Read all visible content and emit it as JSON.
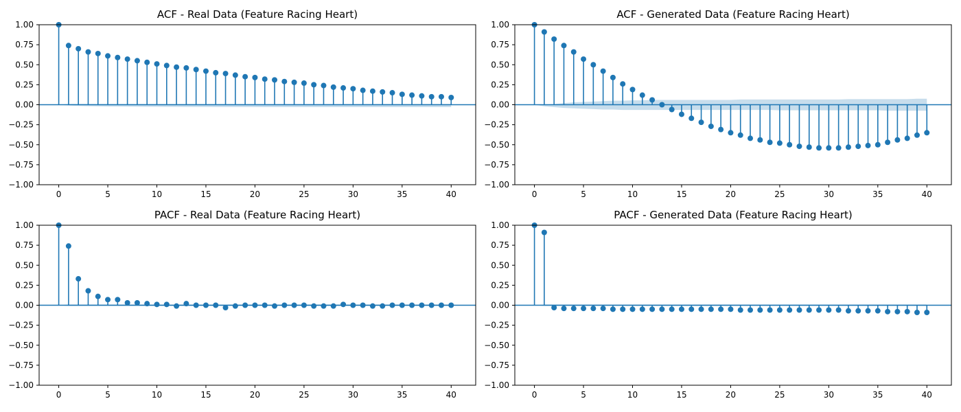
{
  "colors": {
    "series": "#1f77b4",
    "band": "#1f77b4"
  },
  "chart_data": [
    {
      "type": "stem",
      "title": "ACF - Real Data (Feature Racing Heart)",
      "xlim": [
        -2,
        42.5
      ],
      "ylim": [
        -1,
        1
      ],
      "xticks": [
        0,
        5,
        10,
        15,
        20,
        25,
        30,
        35,
        40
      ],
      "yticks": [
        -1.0,
        -0.75,
        -0.5,
        -0.25,
        0.0,
        0.25,
        0.5,
        0.75,
        1.0
      ],
      "xtick_labels": [
        "0",
        "5",
        "10",
        "15",
        "20",
        "25",
        "30",
        "35",
        "40"
      ],
      "ytick_labels": [
        "−1.00",
        "−0.75",
        "−0.50",
        "−0.25",
        "0.00",
        "0.25",
        "0.50",
        "0.75",
        "1.00"
      ],
      "lags": [
        0,
        1,
        2,
        3,
        4,
        5,
        6,
        7,
        8,
        9,
        10,
        11,
        12,
        13,
        14,
        15,
        16,
        17,
        18,
        19,
        20,
        21,
        22,
        23,
        24,
        25,
        26,
        27,
        28,
        29,
        30,
        31,
        32,
        33,
        34,
        35,
        36,
        37,
        38,
        39,
        40
      ],
      "values": [
        1.0,
        0.74,
        0.7,
        0.66,
        0.64,
        0.61,
        0.59,
        0.57,
        0.55,
        0.53,
        0.51,
        0.49,
        0.47,
        0.46,
        0.44,
        0.42,
        0.4,
        0.39,
        0.37,
        0.35,
        0.34,
        0.32,
        0.31,
        0.29,
        0.28,
        0.27,
        0.25,
        0.24,
        0.22,
        0.21,
        0.2,
        0.18,
        0.17,
        0.16,
        0.15,
        0.13,
        0.12,
        0.11,
        0.1,
        0.1,
        0.09
      ],
      "confidence_band": true,
      "conf_upper": [
        0.0,
        0.01,
        0.01,
        0.01,
        0.01,
        0.01,
        0.01,
        0.01,
        0.01,
        0.01,
        0.01,
        0.01,
        0.01,
        0.01,
        0.01,
        0.01,
        0.01,
        0.01,
        0.01,
        0.01,
        0.01,
        0.01,
        0.01,
        0.01,
        0.01,
        0.01,
        0.01,
        0.01,
        0.01,
        0.01,
        0.01,
        0.01,
        0.01,
        0.01,
        0.01,
        0.01,
        0.01,
        0.01,
        0.01,
        0.01,
        0.01
      ],
      "conf_lower": [
        0.0,
        -0.01,
        -0.015,
        -0.018,
        -0.02,
        -0.022,
        -0.023,
        -0.024,
        -0.025,
        -0.026,
        -0.026,
        -0.027,
        -0.027,
        -0.028,
        -0.028,
        -0.028,
        -0.029,
        -0.029,
        -0.029,
        -0.029,
        -0.029,
        -0.03,
        -0.03,
        -0.03,
        -0.03,
        -0.03,
        -0.03,
        -0.03,
        -0.03,
        -0.03,
        -0.03,
        -0.03,
        -0.03,
        -0.03,
        -0.03,
        -0.03,
        -0.03,
        -0.03,
        -0.03,
        -0.03,
        -0.03
      ]
    },
    {
      "type": "stem",
      "title": "ACF - Generated Data (Feature Racing Heart)",
      "xlim": [
        -2,
        42.5
      ],
      "ylim": [
        -1,
        1
      ],
      "xticks": [
        0,
        5,
        10,
        15,
        20,
        25,
        30,
        35,
        40
      ],
      "yticks": [
        -1.0,
        -0.75,
        -0.5,
        -0.25,
        0.0,
        0.25,
        0.5,
        0.75,
        1.0
      ],
      "xtick_labels": [
        "0",
        "5",
        "10",
        "15",
        "20",
        "25",
        "30",
        "35",
        "40"
      ],
      "ytick_labels": [
        "−1.00",
        "−0.75",
        "−0.50",
        "−0.25",
        "0.00",
        "0.25",
        "0.50",
        "0.75",
        "1.00"
      ],
      "lags": [
        0,
        1,
        2,
        3,
        4,
        5,
        6,
        7,
        8,
        9,
        10,
        11,
        12,
        13,
        14,
        15,
        16,
        17,
        18,
        19,
        20,
        21,
        22,
        23,
        24,
        25,
        26,
        27,
        28,
        29,
        30,
        31,
        32,
        33,
        34,
        35,
        36,
        37,
        38,
        39,
        40
      ],
      "values": [
        1.0,
        0.91,
        0.82,
        0.74,
        0.66,
        0.57,
        0.5,
        0.42,
        0.34,
        0.26,
        0.19,
        0.12,
        0.06,
        0.0,
        -0.06,
        -0.12,
        -0.17,
        -0.22,
        -0.27,
        -0.31,
        -0.35,
        -0.38,
        -0.42,
        -0.44,
        -0.47,
        -0.48,
        -0.5,
        -0.52,
        -0.53,
        -0.54,
        -0.54,
        -0.54,
        -0.53,
        -0.52,
        -0.51,
        -0.5,
        -0.47,
        -0.44,
        -0.42,
        -0.38,
        -0.35
      ],
      "confidence_band": true,
      "conf_upper": [
        0.0,
        0.0,
        0.01,
        0.02,
        0.03,
        0.035,
        0.04,
        0.045,
        0.05,
        0.05,
        0.055,
        0.055,
        0.06,
        0.06,
        0.06,
        0.06,
        0.06,
        0.06,
        0.06,
        0.06,
        0.06,
        0.065,
        0.065,
        0.065,
        0.065,
        0.065,
        0.065,
        0.065,
        0.065,
        0.065,
        0.065,
        0.065,
        0.07,
        0.07,
        0.07,
        0.07,
        0.07,
        0.07,
        0.07,
        0.075,
        0.075
      ],
      "conf_lower": [
        0.0,
        -0.02,
        -0.03,
        -0.04,
        -0.045,
        -0.05,
        -0.055,
        -0.06,
        -0.06,
        -0.065,
        -0.065,
        -0.065,
        -0.065,
        -0.065,
        -0.065,
        -0.065,
        -0.065,
        -0.065,
        -0.065,
        -0.065,
        -0.065,
        -0.065,
        -0.065,
        -0.065,
        -0.065,
        -0.07,
        -0.07,
        -0.07,
        -0.07,
        -0.07,
        -0.07,
        -0.07,
        -0.07,
        -0.07,
        -0.07,
        -0.07,
        -0.075,
        -0.075,
        -0.075,
        -0.075,
        -0.075
      ]
    },
    {
      "type": "stem",
      "title": "PACF - Real Data (Feature Racing Heart)",
      "xlim": [
        -2,
        42.5
      ],
      "ylim": [
        -1,
        1
      ],
      "xticks": [
        0,
        5,
        10,
        15,
        20,
        25,
        30,
        35,
        40
      ],
      "yticks": [
        -1.0,
        -0.75,
        -0.5,
        -0.25,
        0.0,
        0.25,
        0.5,
        0.75,
        1.0
      ],
      "xtick_labels": [
        "0",
        "5",
        "10",
        "15",
        "20",
        "25",
        "30",
        "35",
        "40"
      ],
      "ytick_labels": [
        "−1.00",
        "−0.75",
        "−0.50",
        "−0.25",
        "0.00",
        "0.25",
        "0.50",
        "0.75",
        "1.00"
      ],
      "lags": [
        0,
        1,
        2,
        3,
        4,
        5,
        6,
        7,
        8,
        9,
        10,
        11,
        12,
        13,
        14,
        15,
        16,
        17,
        18,
        19,
        20,
        21,
        22,
        23,
        24,
        25,
        26,
        27,
        28,
        29,
        30,
        31,
        32,
        33,
        34,
        35,
        36,
        37,
        38,
        39,
        40
      ],
      "values": [
        1.0,
        0.74,
        0.33,
        0.18,
        0.11,
        0.07,
        0.07,
        0.03,
        0.03,
        0.02,
        0.01,
        0.01,
        -0.01,
        0.02,
        0.0,
        0.0,
        0.0,
        -0.03,
        -0.01,
        0.0,
        0.0,
        0.0,
        -0.01,
        0.0,
        0.0,
        0.0,
        -0.01,
        -0.01,
        -0.01,
        0.01,
        0.0,
        0.0,
        -0.01,
        -0.01,
        0.0,
        0.0,
        0.0,
        0.0,
        0.0,
        0.0,
        0.0
      ],
      "confidence_band": true,
      "conf_upper": [
        0.0,
        0.01,
        0.01,
        0.01,
        0.01,
        0.01,
        0.01,
        0.01,
        0.01,
        0.01,
        0.01,
        0.01,
        0.01,
        0.01,
        0.01,
        0.01,
        0.01,
        0.01,
        0.01,
        0.01,
        0.01,
        0.01,
        0.01,
        0.01,
        0.01,
        0.01,
        0.01,
        0.01,
        0.01,
        0.01,
        0.01,
        0.01,
        0.01,
        0.01,
        0.01,
        0.01,
        0.01,
        0.01,
        0.01,
        0.01,
        0.01
      ],
      "conf_lower": [
        0.0,
        -0.01,
        -0.01,
        -0.01,
        -0.01,
        -0.01,
        -0.01,
        -0.01,
        -0.01,
        -0.01,
        -0.01,
        -0.01,
        -0.01,
        -0.01,
        -0.01,
        -0.01,
        -0.01,
        -0.01,
        -0.01,
        -0.01,
        -0.01,
        -0.01,
        -0.01,
        -0.01,
        -0.01,
        -0.01,
        -0.01,
        -0.01,
        -0.01,
        -0.01,
        -0.01,
        -0.01,
        -0.01,
        -0.01,
        -0.01,
        -0.01,
        -0.01,
        -0.01,
        -0.01,
        -0.01,
        -0.01
      ]
    },
    {
      "type": "stem",
      "title": "PACF - Generated Data (Feature Racing Heart)",
      "xlim": [
        -2,
        42.5
      ],
      "ylim": [
        -1,
        1
      ],
      "xticks": [
        0,
        5,
        10,
        15,
        20,
        25,
        30,
        35,
        40
      ],
      "yticks": [
        -1.0,
        -0.75,
        -0.5,
        -0.25,
        0.0,
        0.25,
        0.5,
        0.75,
        1.0
      ],
      "xtick_labels": [
        "0",
        "5",
        "10",
        "15",
        "20",
        "25",
        "30",
        "35",
        "40"
      ],
      "ytick_labels": [
        "−1.00",
        "−0.75",
        "−0.50",
        "−0.25",
        "0.00",
        "0.25",
        "0.50",
        "0.75",
        "1.00"
      ],
      "lags": [
        0,
        1,
        2,
        3,
        4,
        5,
        6,
        7,
        8,
        9,
        10,
        11,
        12,
        13,
        14,
        15,
        16,
        17,
        18,
        19,
        20,
        21,
        22,
        23,
        24,
        25,
        26,
        27,
        28,
        29,
        30,
        31,
        32,
        33,
        34,
        35,
        36,
        37,
        38,
        39,
        40
      ],
      "values": [
        1.0,
        0.91,
        -0.03,
        -0.04,
        -0.04,
        -0.04,
        -0.04,
        -0.04,
        -0.05,
        -0.05,
        -0.05,
        -0.05,
        -0.05,
        -0.05,
        -0.05,
        -0.05,
        -0.05,
        -0.05,
        -0.05,
        -0.05,
        -0.05,
        -0.06,
        -0.06,
        -0.06,
        -0.06,
        -0.06,
        -0.06,
        -0.06,
        -0.06,
        -0.06,
        -0.06,
        -0.06,
        -0.07,
        -0.07,
        -0.07,
        -0.07,
        -0.08,
        -0.08,
        -0.08,
        -0.09,
        -0.09
      ],
      "confidence_band": true,
      "conf_upper": [
        0.0,
        0.01,
        0.01,
        0.01,
        0.01,
        0.01,
        0.01,
        0.01,
        0.01,
        0.01,
        0.01,
        0.01,
        0.01,
        0.01,
        0.01,
        0.01,
        0.01,
        0.01,
        0.01,
        0.01,
        0.01,
        0.01,
        0.01,
        0.01,
        0.01,
        0.01,
        0.01,
        0.01,
        0.01,
        0.01,
        0.01,
        0.01,
        0.01,
        0.01,
        0.01,
        0.01,
        0.01,
        0.01,
        0.01,
        0.01,
        0.01
      ],
      "conf_lower": [
        0.0,
        -0.01,
        -0.01,
        -0.01,
        -0.01,
        -0.01,
        -0.01,
        -0.01,
        -0.01,
        -0.01,
        -0.01,
        -0.01,
        -0.01,
        -0.01,
        -0.01,
        -0.01,
        -0.01,
        -0.01,
        -0.01,
        -0.01,
        -0.01,
        -0.01,
        -0.01,
        -0.01,
        -0.01,
        -0.01,
        -0.01,
        -0.01,
        -0.01,
        -0.01,
        -0.01,
        -0.01,
        -0.01,
        -0.01,
        -0.01,
        -0.01,
        -0.01,
        -0.01,
        -0.01,
        -0.01,
        -0.01
      ]
    }
  ]
}
